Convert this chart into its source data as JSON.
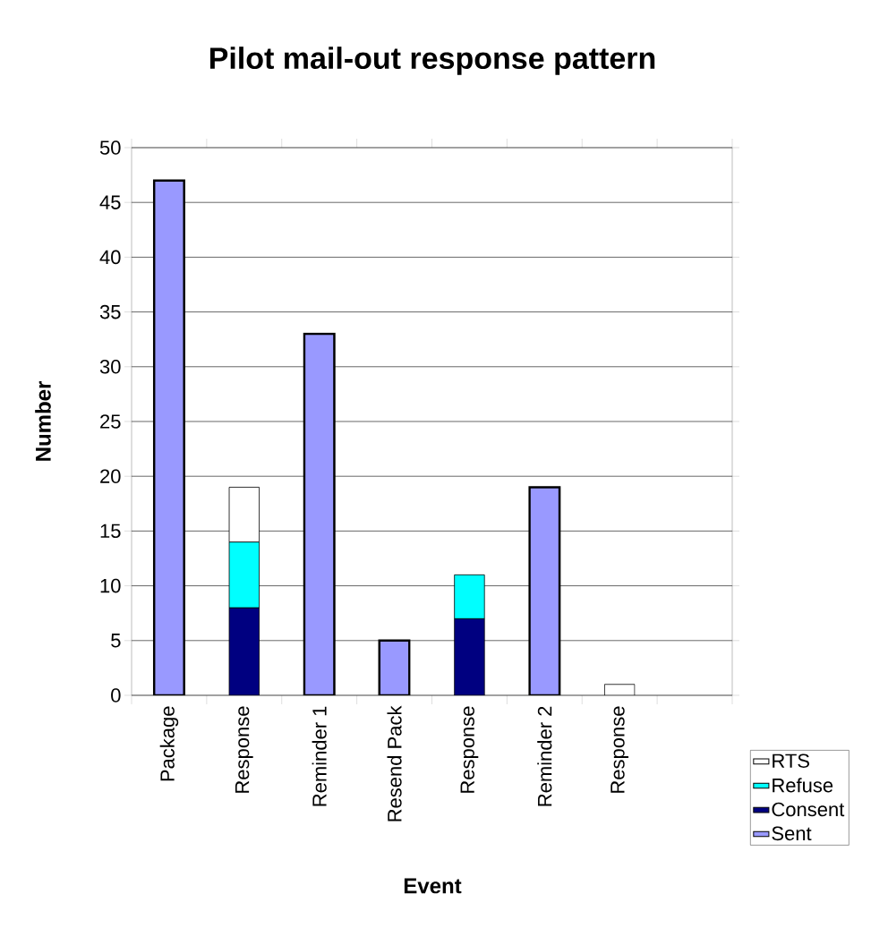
{
  "chart_data": {
    "type": "bar",
    "title": "Pilot mail-out response pattern",
    "xlabel": "Event",
    "ylabel": "Number",
    "categories": [
      "Package",
      "Response",
      "Reminder 1",
      "Resend Pack",
      "Response",
      "Reminder 2",
      "Response",
      null
    ],
    "stacked": true,
    "series": [
      {
        "name": "Sent",
        "color": "#9999ff",
        "values": [
          47,
          null,
          33,
          5,
          null,
          19,
          null,
          null
        ]
      },
      {
        "name": "Consent",
        "color": "#000080",
        "values": [
          null,
          8,
          null,
          null,
          7,
          null,
          null,
          null
        ]
      },
      {
        "name": "Refuse",
        "color": "#00ffff",
        "values": [
          null,
          6,
          null,
          null,
          4,
          null,
          null,
          null
        ]
      },
      {
        "name": "RTS",
        "color": "#ffffff",
        "values": [
          null,
          5,
          null,
          null,
          null,
          null,
          1,
          null
        ]
      }
    ],
    "ylim": [
      0,
      50
    ],
    "yticks": [
      0,
      5,
      10,
      15,
      20,
      25,
      30,
      35,
      40,
      45,
      50
    ],
    "grid": "y",
    "legend": "bottom right"
  }
}
